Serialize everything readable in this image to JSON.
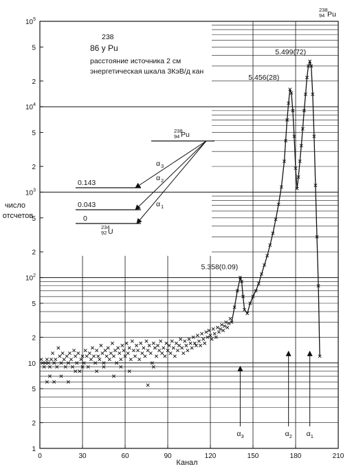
{
  "chart_data": {
    "type": "scatter",
    "xlabel": "Канал",
    "ylabel_line1": "число",
    "ylabel_line2": "отсчетов",
    "xlim": [
      0,
      210
    ],
    "ylim": [
      1,
      100000
    ],
    "yscale": "log",
    "xticks": [
      0,
      30,
      60,
      90,
      120,
      150,
      180,
      210
    ],
    "yticks": [
      {
        "value": 100000,
        "base": "10",
        "exp": "5"
      },
      {
        "value": 50000,
        "label": "5"
      },
      {
        "value": 20000,
        "label": "2"
      },
      {
        "value": 10000,
        "base": "10",
        "exp": "4"
      },
      {
        "value": 5000,
        "label": "5"
      },
      {
        "value": 2000,
        "label": "2"
      },
      {
        "value": 1000,
        "base": "10",
        "exp": "3"
      },
      {
        "value": 500,
        "label": "5"
      },
      {
        "value": 200,
        "label": "2"
      },
      {
        "value": 100,
        "base": "10",
        "exp": "2"
      },
      {
        "value": 50,
        "label": "5"
      },
      {
        "value": 20,
        "label": "2"
      },
      {
        "value": 10,
        "label": "10"
      },
      {
        "value": 5,
        "label": "5"
      },
      {
        "value": 2,
        "label": "2"
      },
      {
        "value": 1,
        "label": "1"
      }
    ],
    "info": {
      "mass": "238",
      "line1": "86 у Pu",
      "line2": "расстояние источника 2 см",
      "line3": "энергетическая шкала 3КэВ/д кан"
    },
    "corner_label": {
      "mass": "238",
      "z": "94",
      "symbol": "Pu"
    },
    "scheme": {
      "parent": {
        "mass": "238",
        "z": "94",
        "symbol": "Pu"
      },
      "daughter": {
        "mass": "234",
        "z": "92",
        "symbol": "U"
      },
      "levels": [
        "0.143",
        "0.043",
        "0"
      ],
      "alphas": [
        {
          "sym": "α",
          "sub": "3"
        },
        {
          "sym": "α",
          "sub": "2"
        },
        {
          "sym": "α",
          "sub": "1"
        }
      ]
    },
    "peaks": [
      {
        "label": "5.358(0.09)",
        "x": 141,
        "y": 100
      },
      {
        "label": "5.456(28)",
        "x": 176,
        "y": 16000
      },
      {
        "label": "5.499(72)",
        "x": 190,
        "y": 34000
      }
    ],
    "arrows": [
      {
        "sym": "α",
        "sub": "3",
        "x": 141,
        "y_from": 1.4,
        "y_to": 10
      },
      {
        "sym": "α",
        "sub": "2",
        "x": 175,
        "y_from": 1.4,
        "y_to": 15
      },
      {
        "sym": "α",
        "sub": "1",
        "x": 190,
        "y_from": 1.4,
        "y_to": 15
      }
    ],
    "curve": [
      [
        135,
        30
      ],
      [
        137,
        45
      ],
      [
        139,
        70
      ],
      [
        141,
        100
      ],
      [
        142,
        90
      ],
      [
        143,
        60
      ],
      [
        144,
        42
      ],
      [
        146,
        38
      ],
      [
        148,
        50
      ],
      [
        150,
        60
      ],
      [
        152,
        70
      ],
      [
        154,
        85
      ],
      [
        156,
        110
      ],
      [
        158,
        140
      ],
      [
        160,
        180
      ],
      [
        162,
        240
      ],
      [
        164,
        330
      ],
      [
        166,
        480
      ],
      [
        168,
        720
      ],
      [
        170,
        1150
      ],
      [
        172,
        2300
      ],
      [
        173,
        4000
      ],
      [
        174,
        7000
      ],
      [
        175,
        11000
      ],
      [
        176,
        16000
      ],
      [
        177,
        14500
      ],
      [
        178,
        9000
      ],
      [
        179,
        4500
      ],
      [
        180,
        1900
      ],
      [
        181,
        1100
      ],
      [
        182,
        1500
      ],
      [
        183,
        2300
      ],
      [
        184,
        3500
      ],
      [
        185,
        5500
      ],
      [
        186,
        9000
      ],
      [
        187,
        14000
      ],
      [
        188,
        22000
      ],
      [
        189,
        30000
      ],
      [
        190,
        34000
      ],
      [
        191,
        30000
      ],
      [
        192,
        14000
      ],
      [
        193,
        4500
      ],
      [
        194,
        1200
      ],
      [
        195,
        300
      ],
      [
        196,
        80
      ],
      [
        197,
        12
      ]
    ],
    "points": [
      [
        1,
        11
      ],
      [
        2,
        10
      ],
      [
        3,
        9
      ],
      [
        4,
        10
      ],
      [
        5,
        11
      ],
      [
        6,
        10
      ],
      [
        7,
        9
      ],
      [
        8,
        11
      ],
      [
        9,
        13
      ],
      [
        10,
        10
      ],
      [
        11,
        11
      ],
      [
        12,
        9
      ],
      [
        13,
        15
      ],
      [
        14,
        12
      ],
      [
        15,
        10
      ],
      [
        16,
        13
      ],
      [
        17,
        11
      ],
      [
        18,
        9
      ],
      [
        19,
        12
      ],
      [
        20,
        10
      ],
      [
        21,
        13
      ],
      [
        22,
        11
      ],
      [
        23,
        9
      ],
      [
        24,
        14
      ],
      [
        25,
        12
      ],
      [
        26,
        10
      ],
      [
        27,
        13
      ],
      [
        28,
        8
      ],
      [
        29,
        11
      ],
      [
        30,
        12
      ],
      [
        31,
        10
      ],
      [
        32,
        14
      ],
      [
        33,
        12
      ],
      [
        34,
        9
      ],
      [
        35,
        13
      ],
      [
        36,
        11
      ],
      [
        37,
        15
      ],
      [
        38,
        12
      ],
      [
        39,
        10
      ],
      [
        40,
        14
      ],
      [
        41,
        12
      ],
      [
        42,
        11
      ],
      [
        43,
        16
      ],
      [
        44,
        13
      ],
      [
        45,
        10
      ],
      [
        46,
        14
      ],
      [
        47,
        12
      ],
      [
        48,
        15
      ],
      [
        49,
        11
      ],
      [
        50,
        13
      ],
      [
        51,
        17
      ],
      [
        52,
        12
      ],
      [
        53,
        14
      ],
      [
        54,
        10
      ],
      [
        55,
        15
      ],
      [
        56,
        13
      ],
      [
        57,
        11
      ],
      [
        58,
        16
      ],
      [
        59,
        14
      ],
      [
        60,
        12
      ],
      [
        61,
        17
      ],
      [
        62,
        13
      ],
      [
        63,
        15
      ],
      [
        64,
        11
      ],
      [
        65,
        18
      ],
      [
        66,
        14
      ],
      [
        67,
        12
      ],
      [
        68,
        16
      ],
      [
        69,
        14
      ],
      [
        70,
        11
      ],
      [
        71,
        17
      ],
      [
        72,
        13
      ],
      [
        73,
        15
      ],
      [
        74,
        12
      ],
      [
        75,
        18
      ],
      [
        76,
        14
      ],
      [
        77,
        16
      ],
      [
        78,
        13
      ],
      [
        79,
        10
      ],
      [
        80,
        17
      ],
      [
        81,
        15
      ],
      [
        82,
        12
      ],
      [
        83,
        16
      ],
      [
        84,
        14
      ],
      [
        85,
        18
      ],
      [
        86,
        13
      ],
      [
        87,
        15
      ],
      [
        88,
        12
      ],
      [
        89,
        17
      ],
      [
        90,
        14
      ],
      [
        91,
        16
      ],
      [
        92,
        13
      ],
      [
        93,
        18
      ],
      [
        94,
        15
      ],
      [
        95,
        12
      ],
      [
        96,
        17
      ],
      [
        97,
        14
      ],
      [
        98,
        16
      ],
      [
        99,
        19
      ],
      [
        100,
        15
      ],
      [
        101,
        13
      ],
      [
        102,
        18
      ],
      [
        103,
        16
      ],
      [
        104,
        14
      ],
      [
        105,
        19
      ],
      [
        106,
        17
      ],
      [
        107,
        15
      ],
      [
        108,
        20
      ],
      [
        109,
        17
      ],
      [
        110,
        16
      ],
      [
        111,
        21
      ],
      [
        112,
        18
      ],
      [
        113,
        16
      ],
      [
        114,
        22
      ],
      [
        115,
        19
      ],
      [
        116,
        17
      ],
      [
        117,
        23
      ],
      [
        118,
        20
      ],
      [
        119,
        24
      ],
      [
        120,
        21
      ],
      [
        121,
        19
      ],
      [
        122,
        25
      ],
      [
        123,
        22
      ],
      [
        124,
        20
      ],
      [
        125,
        26
      ],
      [
        126,
        23
      ],
      [
        127,
        25
      ],
      [
        128,
        28
      ],
      [
        129,
        24
      ],
      [
        130,
        27
      ],
      [
        131,
        30
      ],
      [
        132,
        26
      ],
      [
        133,
        29
      ],
      [
        134,
        33
      ],
      [
        5,
        6
      ],
      [
        10,
        6
      ],
      [
        15,
        7
      ],
      [
        20,
        6
      ],
      [
        25,
        8
      ],
      [
        40,
        8
      ],
      [
        45,
        9
      ],
      [
        52,
        7
      ],
      [
        63,
        8
      ],
      [
        80,
        9
      ],
      [
        76,
        5.5
      ],
      [
        7,
        7
      ],
      [
        30,
        9
      ],
      [
        57,
        9
      ]
    ]
  }
}
